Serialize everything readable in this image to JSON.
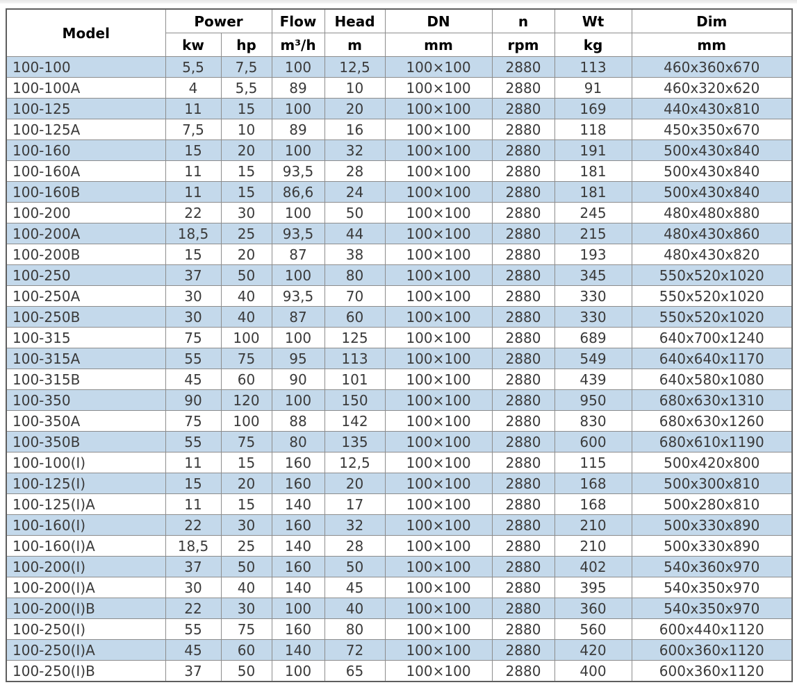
{
  "table": {
    "header": {
      "model": "Model",
      "power_group": "Power",
      "flow": "Flow",
      "head": "Head",
      "dn": "DN",
      "n": "n",
      "wt": "Wt",
      "dim": "Dim",
      "units": {
        "kw": "kw",
        "hp": "hp",
        "flow": "m³/h",
        "head": "m",
        "dn": "mm",
        "n": "rpm",
        "wt": "kg",
        "dim": "mm"
      }
    },
    "rows": [
      {
        "model": "100-100",
        "kw": "5,5",
        "hp": "7,5",
        "flow": "100",
        "head": "12,5",
        "dn": "100×100",
        "n": "2880",
        "wt": "113",
        "dim": "460x360x670"
      },
      {
        "model": "100-100A",
        "kw": "4",
        "hp": "5,5",
        "flow": "89",
        "head": "10",
        "dn": "100×100",
        "n": "2880",
        "wt": "91",
        "dim": "460x320x620"
      },
      {
        "model": "100-125",
        "kw": "11",
        "hp": "15",
        "flow": "100",
        "head": "20",
        "dn": "100×100",
        "n": "2880",
        "wt": "169",
        "dim": "440x430x810"
      },
      {
        "model": "100-125A",
        "kw": "7,5",
        "hp": "10",
        "flow": "89",
        "head": "16",
        "dn": "100×100",
        "n": "2880",
        "wt": "118",
        "dim": "450x350x670"
      },
      {
        "model": "100-160",
        "kw": "15",
        "hp": "20",
        "flow": "100",
        "head": "32",
        "dn": "100×100",
        "n": "2880",
        "wt": "191",
        "dim": "500x430x840"
      },
      {
        "model": "100-160A",
        "kw": "11",
        "hp": "15",
        "flow": "93,5",
        "head": "28",
        "dn": "100×100",
        "n": "2880",
        "wt": "181",
        "dim": "500x430x840"
      },
      {
        "model": "100-160B",
        "kw": "11",
        "hp": "15",
        "flow": "86,6",
        "head": "24",
        "dn": "100×100",
        "n": "2880",
        "wt": "181",
        "dim": "500x430x840"
      },
      {
        "model": "100-200",
        "kw": "22",
        "hp": "30",
        "flow": "100",
        "head": "50",
        "dn": "100×100",
        "n": "2880",
        "wt": "245",
        "dim": "480x480x880"
      },
      {
        "model": "100-200A",
        "kw": "18,5",
        "hp": "25",
        "flow": "93,5",
        "head": "44",
        "dn": "100×100",
        "n": "2880",
        "wt": "215",
        "dim": "480x430x860"
      },
      {
        "model": "100-200B",
        "kw": "15",
        "hp": "20",
        "flow": "87",
        "head": "38",
        "dn": "100×100",
        "n": "2880",
        "wt": "193",
        "dim": "480x430x820"
      },
      {
        "model": "100-250",
        "kw": "37",
        "hp": "50",
        "flow": "100",
        "head": "80",
        "dn": "100×100",
        "n": "2880",
        "wt": "345",
        "dim": "550x520x1020"
      },
      {
        "model": "100-250A",
        "kw": "30",
        "hp": "40",
        "flow": "93,5",
        "head": "70",
        "dn": "100×100",
        "n": "2880",
        "wt": "330",
        "dim": "550x520x1020"
      },
      {
        "model": "100-250B",
        "kw": "30",
        "hp": "40",
        "flow": "87",
        "head": "60",
        "dn": "100×100",
        "n": "2880",
        "wt": "330",
        "dim": "550x520x1020"
      },
      {
        "model": "100-315",
        "kw": "75",
        "hp": "100",
        "flow": "100",
        "head": "125",
        "dn": "100×100",
        "n": "2880",
        "wt": "689",
        "dim": "640x700x1240"
      },
      {
        "model": "100-315A",
        "kw": "55",
        "hp": "75",
        "flow": "95",
        "head": "113",
        "dn": "100×100",
        "n": "2880",
        "wt": "549",
        "dim": "640x640x1170"
      },
      {
        "model": "100-315B",
        "kw": "45",
        "hp": "60",
        "flow": "90",
        "head": "101",
        "dn": "100×100",
        "n": "2880",
        "wt": "439",
        "dim": "640x580x1080"
      },
      {
        "model": "100-350",
        "kw": "90",
        "hp": "120",
        "flow": "100",
        "head": "150",
        "dn": "100×100",
        "n": "2880",
        "wt": "950",
        "dim": "680x630x1310"
      },
      {
        "model": "100-350A",
        "kw": "75",
        "hp": "100",
        "flow": "88",
        "head": "142",
        "dn": "100×100",
        "n": "2880",
        "wt": "830",
        "dim": "680x630x1260"
      },
      {
        "model": "100-350B",
        "kw": "55",
        "hp": "75",
        "flow": "80",
        "head": "135",
        "dn": "100×100",
        "n": "2880",
        "wt": "600",
        "dim": "680x610x1190"
      },
      {
        "model": "100-100(I)",
        "kw": "11",
        "hp": "15",
        "flow": "160",
        "head": "12,5",
        "dn": "100×100",
        "n": "2880",
        "wt": "115",
        "dim": "500x420x800"
      },
      {
        "model": "100-125(I)",
        "kw": "15",
        "hp": "20",
        "flow": "160",
        "head": "20",
        "dn": "100×100",
        "n": "2880",
        "wt": "168",
        "dim": "500x300x810"
      },
      {
        "model": "100-125(I)A",
        "kw": "11",
        "hp": "15",
        "flow": "140",
        "head": "17",
        "dn": "100×100",
        "n": "2880",
        "wt": "168",
        "dim": "500x280x810"
      },
      {
        "model": "100-160(I)",
        "kw": "22",
        "hp": "30",
        "flow": "160",
        "head": "32",
        "dn": "100×100",
        "n": "2880",
        "wt": "210",
        "dim": "500x330x890"
      },
      {
        "model": "100-160(I)A",
        "kw": "18,5",
        "hp": "25",
        "flow": "140",
        "head": "28",
        "dn": "100×100",
        "n": "2880",
        "wt": "210",
        "dim": "500x330x890"
      },
      {
        "model": "100-200(I)",
        "kw": "37",
        "hp": "50",
        "flow": "160",
        "head": "50",
        "dn": "100×100",
        "n": "2880",
        "wt": "402",
        "dim": "540x360x970"
      },
      {
        "model": "100-200(I)A",
        "kw": "30",
        "hp": "40",
        "flow": "140",
        "head": "45",
        "dn": "100×100",
        "n": "2880",
        "wt": "395",
        "dim": "540x350x970"
      },
      {
        "model": "100-200(I)B",
        "kw": "22",
        "hp": "30",
        "flow": "100",
        "head": "40",
        "dn": "100×100",
        "n": "2880",
        "wt": "360",
        "dim": "540x350x970"
      },
      {
        "model": "100-250(I)",
        "kw": "55",
        "hp": "75",
        "flow": "160",
        "head": "80",
        "dn": "100×100",
        "n": "2880",
        "wt": "560",
        "dim": "600x440x1120"
      },
      {
        "model": "100-250(I)A",
        "kw": "45",
        "hp": "60",
        "flow": "140",
        "head": "72",
        "dn": "100×100",
        "n": "2880",
        "wt": "420",
        "dim": "600x360x1120"
      },
      {
        "model": "100-250(I)B",
        "kw": "37",
        "hp": "50",
        "flow": "100",
        "head": "65",
        "dn": "100×100",
        "n": "2880",
        "wt": "400",
        "dim": "600x360x1120"
      }
    ]
  },
  "colors": {
    "row_alt_background": "#c4d9eb",
    "border_inner": "#8c8c8c",
    "border_outer": "#5e5e5e",
    "data_text": "#3a3a3a",
    "header_text": "#000000"
  }
}
